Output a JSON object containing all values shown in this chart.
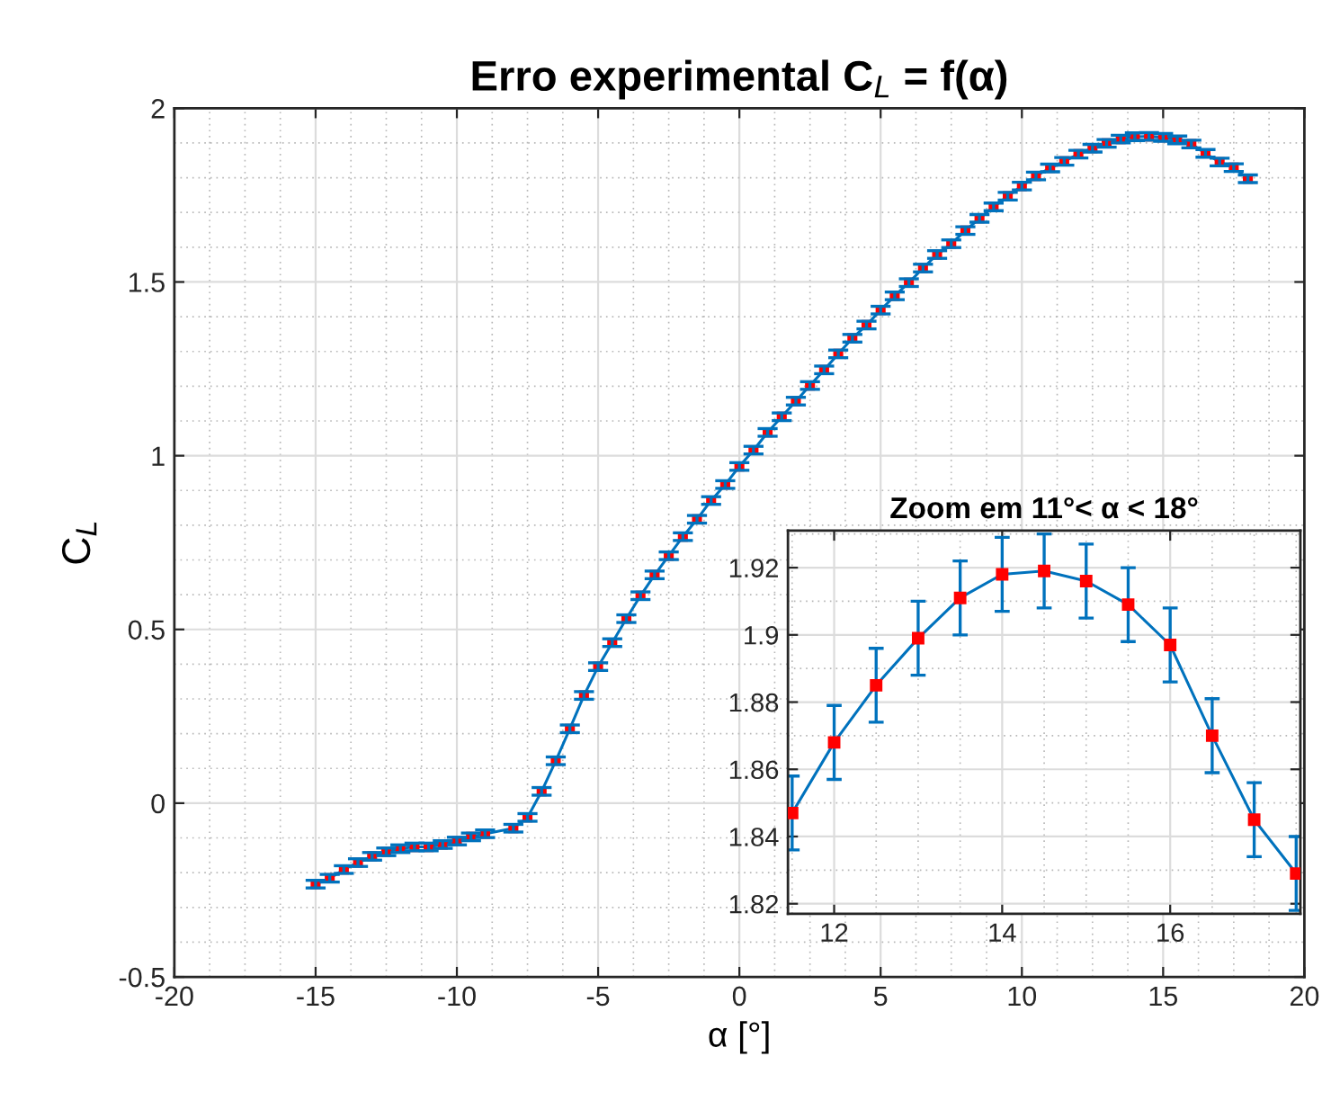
{
  "chart_data": [
    {
      "type": "line",
      "title": "Erro experimental C$_{L}$ = f(α)",
      "xlabel": "α [°]",
      "ylabel": "C$_{L}$",
      "x": [
        -15,
        -14.5,
        -14,
        -13.5,
        -13,
        -12.5,
        -12,
        -11.5,
        -11,
        -10.5,
        -10,
        -9.5,
        -9,
        -8,
        -7.5,
        -7,
        -6.5,
        -6,
        -5.5,
        -5,
        -4.5,
        -4,
        -3.5,
        -3,
        -2.5,
        -2,
        -1.5,
        -1,
        -0.5,
        0,
        0.5,
        1,
        1.5,
        2,
        2.5,
        3,
        3.5,
        4,
        4.5,
        5,
        5.5,
        6,
        6.5,
        7,
        7.5,
        8,
        8.5,
        9,
        9.5,
        10,
        10.5,
        11,
        11.5,
        12,
        12.5,
        13,
        13.5,
        14,
        14.5,
        15,
        15.5,
        16,
        16.5,
        17,
        17.5,
        18
      ],
      "series": [
        {
          "color": "#0072bd",
          "values": [
            -0.233,
            -0.216,
            -0.191,
            -0.171,
            -0.153,
            -0.14,
            -0.131,
            -0.126,
            -0.126,
            -0.119,
            -0.109,
            -0.097,
            -0.088,
            -0.072,
            -0.041,
            0.034,
            0.122,
            0.214,
            0.31,
            0.393,
            0.462,
            0.531,
            0.597,
            0.657,
            0.712,
            0.767,
            0.817,
            0.871,
            0.917,
            0.969,
            1.016,
            1.067,
            1.112,
            1.157,
            1.202,
            1.247,
            1.293,
            1.338,
            1.376,
            1.419,
            1.46,
            1.498,
            1.54,
            1.579,
            1.61,
            1.648,
            1.683,
            1.716,
            1.747,
            1.776,
            1.805,
            1.828,
            1.847,
            1.868,
            1.885,
            1.899,
            1.911,
            1.918,
            1.919,
            1.916,
            1.909,
            1.897,
            1.87,
            1.845,
            1.829,
            1.797
          ],
          "errors": [
            0.011,
            0.011,
            0.011,
            0.011,
            0.011,
            0.011,
            0.011,
            0.011,
            0.011,
            0.011,
            0.011,
            0.011,
            0.011,
            0.011,
            0.011,
            0.011,
            0.011,
            0.011,
            0.011,
            0.011,
            0.011,
            0.011,
            0.011,
            0.011,
            0.011,
            0.011,
            0.011,
            0.011,
            0.011,
            0.011,
            0.011,
            0.011,
            0.011,
            0.011,
            0.011,
            0.011,
            0.011,
            0.011,
            0.011,
            0.011,
            0.011,
            0.011,
            0.011,
            0.011,
            0.011,
            0.011,
            0.011,
            0.011,
            0.011,
            0.011,
            0.011,
            0.011,
            0.011,
            0.011,
            0.011,
            0.011,
            0.011,
            0.011,
            0.011,
            0.011,
            0.011,
            0.011,
            0.011,
            0.011,
            0.011,
            0.011
          ]
        }
      ],
      "xlim": [
        -20,
        20
      ],
      "xticks": [
        -20,
        -15,
        -10,
        -5,
        0,
        5,
        10,
        15,
        20
      ],
      "ylim": [
        -0.5,
        2
      ],
      "yticks": [
        -0.5,
        0,
        0.5,
        1,
        1.5,
        2
      ],
      "grid": true,
      "marker": "square",
      "line_style": "solid"
    },
    {
      "type": "line",
      "title": "Zoom em 11°< α < 18°",
      "x": [
        11.5,
        12,
        12.5,
        13,
        13.5,
        14,
        14.5,
        15,
        15.5,
        16,
        16.5,
        17,
        17.5
      ],
      "series": [
        {
          "color": "#0072bd",
          "values": [
            1.847,
            1.868,
            1.885,
            1.899,
            1.911,
            1.918,
            1.919,
            1.916,
            1.909,
            1.897,
            1.87,
            1.845,
            1.829
          ],
          "errors": [
            0.011,
            0.011,
            0.011,
            0.011,
            0.011,
            0.011,
            0.011,
            0.011,
            0.011,
            0.011,
            0.011,
            0.011,
            0.011
          ]
        }
      ],
      "xlim": [
        11.45,
        17.55
      ],
      "xticks": [
        12,
        14,
        16
      ],
      "ylim": [
        1.817,
        1.931
      ],
      "yticks": [
        1.82,
        1.84,
        1.86,
        1.88,
        1.9,
        1.92
      ],
      "grid": true,
      "marker": "square",
      "line_style": "solid"
    }
  ]
}
